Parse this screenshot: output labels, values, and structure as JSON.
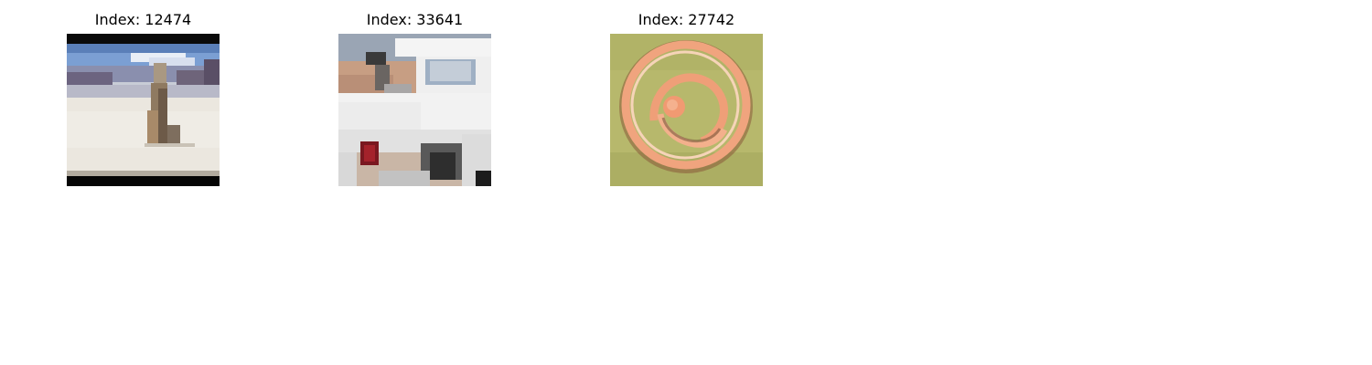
{
  "figure": {
    "panels": [
      {
        "title": "Index: 12474",
        "image": "pixelated-snow-scene-thumbnail"
      },
      {
        "title": "Index: 33641",
        "image": "pixelated-white-truck-thumbnail"
      },
      {
        "title": "Index: 27742",
        "image": "pixelated-orange-spiral-thumbnail"
      }
    ]
  }
}
